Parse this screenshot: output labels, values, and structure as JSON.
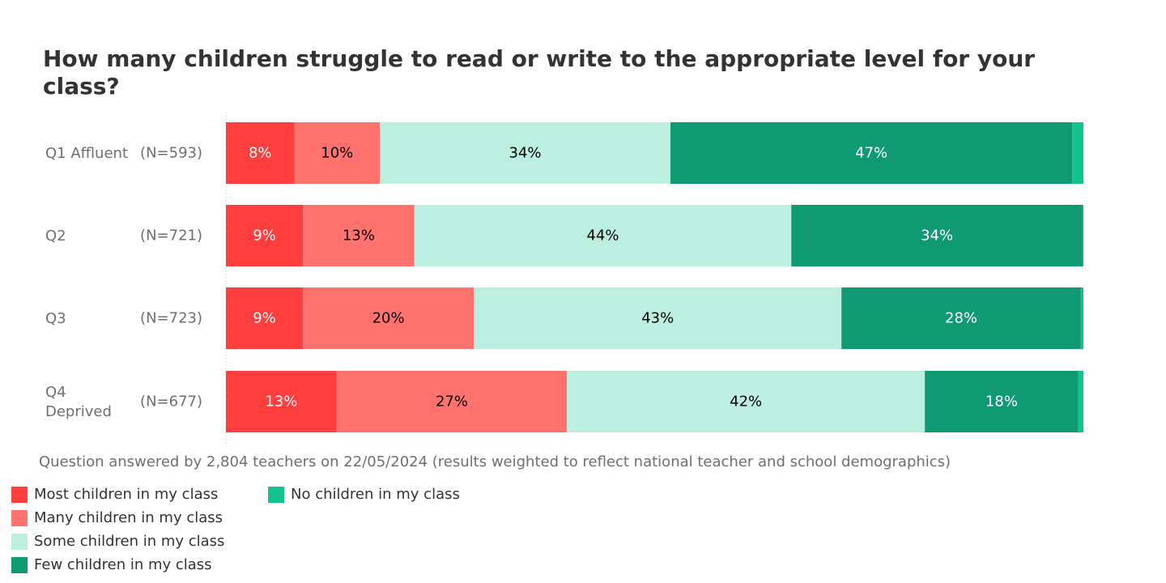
{
  "chart_data": {
    "type": "bar",
    "orientation": "horizontal",
    "stacked": true,
    "title": "How many children struggle to read or write to the appropriate level for your class?",
    "categories": [
      {
        "name": "Q1 Affluent",
        "name_lines": [
          "Q1 Affluent"
        ],
        "n": "(N=593)"
      },
      {
        "name": "Q2",
        "name_lines": [
          "Q2"
        ],
        "n": "(N=721)"
      },
      {
        "name": "Q3",
        "name_lines": [
          "Q3"
        ],
        "n": "(N=723)"
      },
      {
        "name": "Q4 Deprived",
        "name_lines": [
          "Q4",
          "Deprived"
        ],
        "n": "(N=677)"
      }
    ],
    "series": [
      {
        "name": "Most children in my class",
        "color": "#ff3e3e",
        "label_color": "#ffffff",
        "values": [
          8,
          9,
          9,
          13
        ],
        "labels": [
          "8%",
          "9%",
          "9%",
          "13%"
        ]
      },
      {
        "name": "Many children in my class",
        "color": "#ff726e",
        "label_color": "#000000",
        "values": [
          10,
          13,
          20,
          27
        ],
        "labels": [
          "10%",
          "13%",
          "20%",
          "27%"
        ]
      },
      {
        "name": "Some children in my class",
        "color": "#bdefe0",
        "label_color": "#000000",
        "values": [
          34,
          44,
          43,
          42
        ],
        "labels": [
          "34%",
          "44%",
          "43%",
          "42%"
        ]
      },
      {
        "name": "Few children in my class",
        "color": "#0f9a74",
        "label_color": "#ffffff",
        "values": [
          47,
          34,
          28,
          18
        ],
        "labels": [
          "47%",
          "34%",
          "28%",
          "18%"
        ]
      },
      {
        "name": "No children in my class",
        "color": "#12c28f",
        "label_color": "#ffffff",
        "values": [
          1.3,
          0.1,
          0.3,
          0.6
        ],
        "labels": [
          "",
          "",
          "",
          ""
        ]
      }
    ],
    "xlim": [
      0,
      100
    ],
    "grid": false,
    "legend_position": "bottom-left",
    "caption": "Question answered by 2,804 teachers on 22/05/2024 (results weighted to reflect national teacher and school demographics)"
  }
}
